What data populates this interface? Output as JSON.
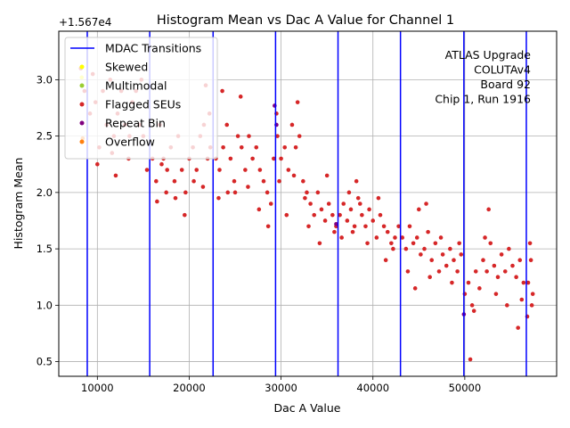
{
  "chart_data": {
    "type": "scatter",
    "title": "Histogram Mean vs Dac A Value for Channel 1",
    "xlabel": "Dac A Value",
    "ylabel": "Histogram Mean",
    "offset_label": "+1.567e4",
    "xlim": [
      5800,
      60000
    ],
    "ylim": [
      0.37,
      3.43
    ],
    "xticks": [
      10000,
      20000,
      30000,
      40000,
      50000
    ],
    "xtick_labels": [
      "10000",
      "20000",
      "30000",
      "40000",
      "50000"
    ],
    "yticks": [
      0.5,
      1.0,
      1.5,
      2.0,
      2.5,
      3.0
    ],
    "ytick_labels": [
      "0.5",
      "1.0",
      "1.5",
      "2.0",
      "2.5",
      "3.0"
    ],
    "grid": true,
    "annotation_lines": [
      "ATLAS Upgrade",
      "COLUTAv4",
      "Board 92",
      "Chip 1, Run 1916"
    ],
    "mdac_transitions": [
      8900,
      15700,
      22600,
      29400,
      36200,
      43000,
      49900,
      56700
    ],
    "legend": {
      "placement": "top-left",
      "entries": [
        {
          "label": "MDAC Transitions",
          "kind": "line",
          "color": "#0000ff"
        },
        {
          "label": "Skewed",
          "kind": "point",
          "color": "#ffff00"
        },
        {
          "label": "Multimodal",
          "kind": "point",
          "color": "#9acd32"
        },
        {
          "label": "Flagged SEUs",
          "kind": "point",
          "color": "#d62728"
        },
        {
          "label": "Repeat Bin",
          "kind": "point",
          "color": "#800080"
        },
        {
          "label": "Overflow",
          "kind": "point",
          "color": "#ff7f0e"
        }
      ]
    },
    "series": [
      {
        "name": "Flagged SEUs",
        "color": "#d62728",
        "points": [
          [
            8200,
            3.1
          ],
          [
            8600,
            2.9
          ],
          [
            9200,
            2.7
          ],
          [
            9800,
            2.8
          ],
          [
            10200,
            2.4
          ],
          [
            10600,
            2.9
          ],
          [
            11000,
            2.6
          ],
          [
            11400,
            3.0
          ],
          [
            11800,
            2.5
          ],
          [
            12200,
            2.7
          ],
          [
            12600,
            2.9
          ],
          [
            13000,
            2.6
          ],
          [
            13400,
            2.3
          ],
          [
            13800,
            2.8
          ],
          [
            14200,
            2.9
          ],
          [
            14600,
            2.6
          ],
          [
            15000,
            2.5
          ],
          [
            15400,
            2.2
          ],
          [
            10000,
            2.25
          ],
          [
            12000,
            2.15
          ],
          [
            13500,
            2.5
          ],
          [
            14800,
            3.0
          ],
          [
            11600,
            2.35
          ],
          [
            9500,
            3.05
          ],
          [
            16000,
            2.3
          ],
          [
            16400,
            2.1
          ],
          [
            16800,
            2.6
          ],
          [
            17200,
            2.3
          ],
          [
            17600,
            2.2
          ],
          [
            18000,
            2.4
          ],
          [
            18400,
            2.1
          ],
          [
            18800,
            2.5
          ],
          [
            19200,
            2.2
          ],
          [
            19600,
            2.0
          ],
          [
            20000,
            2.3
          ],
          [
            20400,
            2.4
          ],
          [
            20800,
            2.2
          ],
          [
            21200,
            2.5
          ],
          [
            21600,
            2.6
          ],
          [
            22000,
            2.3
          ],
          [
            22300,
            2.4
          ],
          [
            16500,
            1.92
          ],
          [
            17500,
            2.0
          ],
          [
            18500,
            1.95
          ],
          [
            19500,
            1.8
          ],
          [
            20500,
            2.1
          ],
          [
            21500,
            2.05
          ],
          [
            22200,
            2.7
          ],
          [
            21800,
            2.95
          ],
          [
            17000,
            2.25
          ],
          [
            22900,
            2.3
          ],
          [
            23300,
            2.2
          ],
          [
            23700,
            2.4
          ],
          [
            24100,
            2.6
          ],
          [
            24500,
            2.3
          ],
          [
            24900,
            2.1
          ],
          [
            25300,
            2.5
          ],
          [
            25700,
            2.4
          ],
          [
            26100,
            2.2
          ],
          [
            26500,
            2.5
          ],
          [
            26900,
            2.3
          ],
          [
            27300,
            2.4
          ],
          [
            27700,
            2.2
          ],
          [
            28100,
            2.1
          ],
          [
            28500,
            2.0
          ],
          [
            28900,
            1.9
          ],
          [
            29200,
            2.3
          ],
          [
            23200,
            1.95
          ],
          [
            24200,
            2.0
          ],
          [
            25600,
            2.85
          ],
          [
            26400,
            2.05
          ],
          [
            27600,
            1.85
          ],
          [
            28600,
            1.7
          ],
          [
            23600,
            2.9
          ],
          [
            25000,
            2.0
          ],
          [
            29600,
            2.5
          ],
          [
            30000,
            2.3
          ],
          [
            30400,
            2.4
          ],
          [
            30800,
            2.2
          ],
          [
            31200,
            2.6
          ],
          [
            31600,
            2.4
          ],
          [
            32000,
            2.5
          ],
          [
            29800,
            2.1
          ],
          [
            30600,
            1.8
          ],
          [
            31400,
            2.15
          ],
          [
            29500,
            2.7
          ],
          [
            31800,
            2.8
          ],
          [
            32400,
            2.1
          ],
          [
            32800,
            2.0
          ],
          [
            33200,
            1.9
          ],
          [
            33600,
            1.8
          ],
          [
            34000,
            2.0
          ],
          [
            34400,
            1.85
          ],
          [
            34800,
            1.75
          ],
          [
            35200,
            1.9
          ],
          [
            35600,
            1.8
          ],
          [
            36000,
            1.7
          ],
          [
            33000,
            1.7
          ],
          [
            34200,
            1.55
          ],
          [
            35000,
            2.15
          ],
          [
            35800,
            1.65
          ],
          [
            32600,
            1.95
          ],
          [
            36400,
            1.8
          ],
          [
            36800,
            1.9
          ],
          [
            37200,
            1.75
          ],
          [
            37600,
            1.85
          ],
          [
            38000,
            1.7
          ],
          [
            38400,
            1.95
          ],
          [
            38800,
            1.8
          ],
          [
            39200,
            1.7
          ],
          [
            39600,
            1.85
          ],
          [
            40000,
            1.75
          ],
          [
            40400,
            1.6
          ],
          [
            40800,
            1.8
          ],
          [
            41200,
            1.7
          ],
          [
            41600,
            1.65
          ],
          [
            42000,
            1.55
          ],
          [
            42400,
            1.6
          ],
          [
            42800,
            1.7
          ],
          [
            36600,
            1.6
          ],
          [
            37400,
            2.0
          ],
          [
            38200,
            2.1
          ],
          [
            39400,
            1.55
          ],
          [
            40600,
            1.95
          ],
          [
            41400,
            1.4
          ],
          [
            42200,
            1.5
          ],
          [
            38600,
            1.9
          ],
          [
            37800,
            1.65
          ],
          [
            43200,
            1.6
          ],
          [
            43600,
            1.5
          ],
          [
            44000,
            1.7
          ],
          [
            44400,
            1.55
          ],
          [
            44800,
            1.6
          ],
          [
            45200,
            1.45
          ],
          [
            45600,
            1.5
          ],
          [
            46000,
            1.65
          ],
          [
            46400,
            1.4
          ],
          [
            46800,
            1.55
          ],
          [
            47200,
            1.3
          ],
          [
            47600,
            1.45
          ],
          [
            48000,
            1.35
          ],
          [
            48400,
            1.5
          ],
          [
            48800,
            1.4
          ],
          [
            49200,
            1.3
          ],
          [
            49600,
            1.45
          ],
          [
            43800,
            1.3
          ],
          [
            45000,
            1.85
          ],
          [
            46200,
            1.25
          ],
          [
            47400,
            1.6
          ],
          [
            48600,
            1.2
          ],
          [
            44600,
            1.15
          ],
          [
            49400,
            1.55
          ],
          [
            45800,
            1.9
          ],
          [
            50000,
            1.1
          ],
          [
            50400,
            1.2
          ],
          [
            50800,
            1.0
          ],
          [
            51200,
            1.3
          ],
          [
            51600,
            1.15
          ],
          [
            52000,
            1.4
          ],
          [
            52400,
            1.3
          ],
          [
            52800,
            1.55
          ],
          [
            53200,
            1.35
          ],
          [
            53600,
            1.25
          ],
          [
            54000,
            1.45
          ],
          [
            54400,
            1.3
          ],
          [
            54800,
            1.5
          ],
          [
            55200,
            1.35
          ],
          [
            55600,
            1.25
          ],
          [
            56000,
            1.4
          ],
          [
            56400,
            1.2
          ],
          [
            50600,
            0.52
          ],
          [
            51000,
            0.95
          ],
          [
            52600,
            1.85
          ],
          [
            53400,
            1.1
          ],
          [
            54600,
            1.0
          ],
          [
            55800,
            0.8
          ],
          [
            56200,
            1.05
          ],
          [
            52200,
            1.6
          ],
          [
            56900,
            1.2
          ],
          [
            57200,
            1.4
          ],
          [
            57400,
            1.1
          ],
          [
            57100,
            1.55
          ],
          [
            56800,
            0.9
          ],
          [
            57300,
            1.0
          ]
        ]
      },
      {
        "name": "Repeat Bin",
        "color": "#800080",
        "points": [
          [
            29300,
            2.77
          ],
          [
            29500,
            2.6
          ],
          [
            36000,
            1.72
          ],
          [
            49900,
            0.92
          ]
        ]
      },
      {
        "name": "Skewed",
        "color": "#ffff00",
        "points": [
          [
            8300,
            3.02
          ]
        ]
      },
      {
        "name": "Overflow",
        "color": "#ff7f0e",
        "points": [
          [
            8400,
            2.48
          ]
        ]
      }
    ]
  }
}
